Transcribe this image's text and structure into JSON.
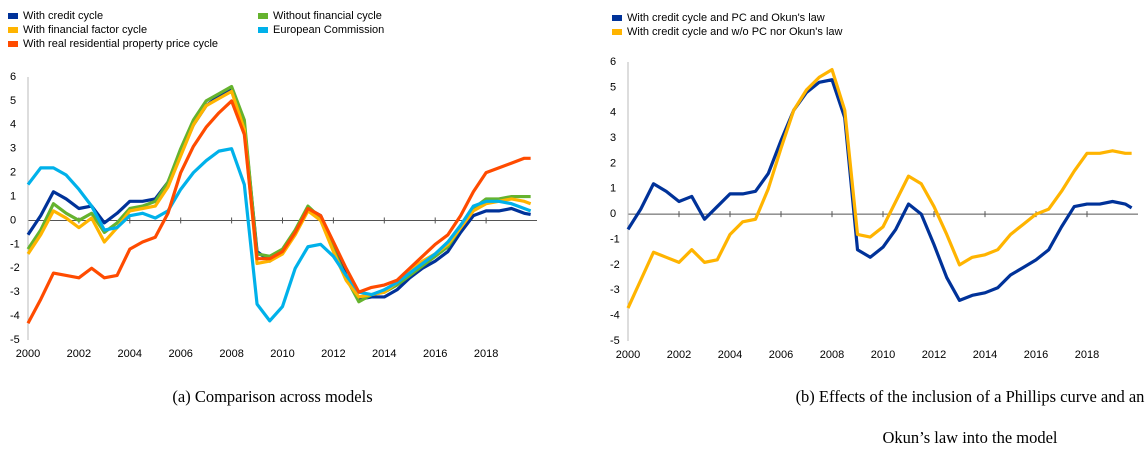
{
  "chart_data": [
    {
      "type": "line",
      "caption": "(a) Comparison across models",
      "x": [
        2000,
        2000.5,
        2001,
        2001.5,
        2002,
        2002.5,
        2003,
        2003.5,
        2004,
        2004.5,
        2005,
        2005.5,
        2006,
        2006.5,
        2007,
        2007.5,
        2008,
        2008.5,
        2009,
        2009.5,
        2010,
        2010.5,
        2011,
        2011.5,
        2012,
        2012.5,
        2013,
        2013.5,
        2014,
        2014.5,
        2015,
        2015.5,
        2016,
        2016.5,
        2017,
        2017.5,
        2018,
        2018.5,
        2019,
        2019.5,
        2019.75
      ],
      "xlim": [
        2000,
        2020
      ],
      "xticks": [
        2000,
        2002,
        2004,
        2006,
        2008,
        2010,
        2012,
        2014,
        2016,
        2018
      ],
      "ylim": [
        -5,
        6
      ],
      "yticks": [
        -5,
        -4,
        -3,
        -2,
        -1,
        0,
        1,
        2,
        3,
        4,
        5,
        6
      ],
      "grid": false,
      "legend_columns": 2,
      "series": [
        {
          "name": "With credit cycle",
          "color": "#003299",
          "values": [
            -0.6,
            0.2,
            1.2,
            0.9,
            0.5,
            0.6,
            -0.1,
            0.3,
            0.8,
            0.8,
            0.9,
            1.6,
            2.8,
            4.0,
            4.8,
            5.2,
            5.5,
            4.0,
            -1.3,
            -1.7,
            -1.3,
            -0.5,
            0.5,
            0.2,
            -1.0,
            -2.3,
            -3.3,
            -3.2,
            -3.2,
            -2.9,
            -2.4,
            -2.0,
            -1.7,
            -1.3,
            -0.5,
            0.2,
            0.4,
            0.4,
            0.5,
            0.3,
            0.25
          ]
        },
        {
          "name": "Without financial cycle",
          "color": "#65b32e",
          "values": [
            -1.2,
            -0.4,
            0.7,
            0.3,
            0.0,
            0.3,
            -0.5,
            -0.1,
            0.5,
            0.6,
            0.8,
            1.6,
            3.0,
            4.2,
            5.0,
            5.3,
            5.6,
            4.2,
            -1.4,
            -1.5,
            -1.2,
            -0.4,
            0.6,
            0.1,
            -1.2,
            -2.4,
            -3.4,
            -3.1,
            -3.0,
            -2.7,
            -2.3,
            -1.9,
            -1.5,
            -1.1,
            -0.3,
            0.5,
            0.9,
            0.9,
            1.0,
            1.0,
            1.0
          ]
        },
        {
          "name": "With financial factor cycle",
          "color": "#ffb400",
          "values": [
            -1.4,
            -0.6,
            0.4,
            0.1,
            -0.3,
            0.1,
            -0.9,
            -0.3,
            0.4,
            0.5,
            0.6,
            1.4,
            2.7,
            4.0,
            4.8,
            5.1,
            5.4,
            3.8,
            -1.8,
            -1.7,
            -1.4,
            -0.6,
            0.4,
            0.0,
            -1.3,
            -2.5,
            -3.2,
            -3.1,
            -3.0,
            -2.6,
            -2.1,
            -1.7,
            -1.4,
            -1.0,
            -0.3,
            0.4,
            0.7,
            0.8,
            0.9,
            0.8,
            0.7
          ]
        },
        {
          "name": "European Commission",
          "color": "#00b1ea",
          "values": [
            1.5,
            2.2,
            2.2,
            1.9,
            1.3,
            0.6,
            -0.4,
            -0.3,
            0.2,
            0.3,
            0.1,
            0.4,
            1.3,
            2.0,
            2.5,
            2.9,
            3.0,
            1.5,
            -3.5,
            -4.2,
            -3.6,
            -2.0,
            -1.1,
            -1.0,
            -1.5,
            -2.3,
            -3.0,
            -3.1,
            -2.9,
            -2.6,
            -2.2,
            -1.8,
            -1.4,
            -0.9,
            -0.2,
            0.6,
            0.8,
            0.8,
            0.7,
            0.5,
            0.4
          ]
        },
        {
          "name": "With real residential property price cycle",
          "color": "#ff4b00",
          "values": [
            -4.3,
            -3.3,
            -2.2,
            -2.3,
            -2.4,
            -2.0,
            -2.4,
            -2.3,
            -1.2,
            -0.9,
            -0.7,
            0.3,
            2.0,
            3.1,
            3.9,
            4.5,
            5.0,
            3.6,
            -1.6,
            -1.6,
            -1.3,
            -0.5,
            0.5,
            0.2,
            -0.9,
            -2.0,
            -3.0,
            -2.8,
            -2.7,
            -2.5,
            -2.0,
            -1.5,
            -1.0,
            -0.6,
            0.2,
            1.2,
            2.0,
            2.2,
            2.4,
            2.6,
            2.6
          ]
        }
      ]
    },
    {
      "type": "line",
      "caption": "(b) Effects of the inclusion of a Phillips curve and an Okun’s law into the model",
      "x": [
        2000,
        2000.5,
        2001,
        2001.5,
        2002,
        2002.5,
        2003,
        2003.5,
        2004,
        2004.5,
        2005,
        2005.5,
        2006,
        2006.5,
        2007,
        2007.5,
        2008,
        2008.5,
        2009,
        2009.5,
        2010,
        2010.5,
        2011,
        2011.5,
        2012,
        2012.5,
        2013,
        2013.5,
        2014,
        2014.5,
        2015,
        2015.5,
        2016,
        2016.5,
        2017,
        2017.5,
        2018,
        2018.5,
        2019,
        2019.5,
        2019.75
      ],
      "xlim": [
        2000,
        2020
      ],
      "xticks": [
        2000,
        2002,
        2004,
        2006,
        2008,
        2010,
        2012,
        2014,
        2016,
        2018
      ],
      "ylim": [
        -5,
        6
      ],
      "yticks": [
        -5,
        -4,
        -3,
        -2,
        -1,
        0,
        1,
        2,
        3,
        4,
        5,
        6
      ],
      "grid": false,
      "legend_columns": 1,
      "series": [
        {
          "name": "With credit cycle and PC and Okun's law",
          "color": "#003299",
          "values": [
            -0.6,
            0.2,
            1.2,
            0.9,
            0.5,
            0.7,
            -0.2,
            0.3,
            0.8,
            0.8,
            0.9,
            1.6,
            2.9,
            4.1,
            4.8,
            5.2,
            5.3,
            3.8,
            -1.4,
            -1.7,
            -1.3,
            -0.6,
            0.4,
            0.0,
            -1.2,
            -2.5,
            -3.4,
            -3.2,
            -3.1,
            -2.9,
            -2.4,
            -2.1,
            -1.8,
            -1.4,
            -0.5,
            0.3,
            0.4,
            0.4,
            0.5,
            0.4,
            0.25
          ]
        },
        {
          "name": "With credit cycle and w/o PC nor Okun's law",
          "color": "#ffb400",
          "values": [
            -3.7,
            -2.6,
            -1.5,
            -1.7,
            -1.9,
            -1.4,
            -1.9,
            -1.8,
            -0.8,
            -0.3,
            -0.2,
            1.0,
            2.6,
            4.1,
            4.9,
            5.4,
            5.7,
            4.1,
            -0.8,
            -0.9,
            -0.5,
            0.5,
            1.5,
            1.2,
            0.3,
            -0.8,
            -2.0,
            -1.7,
            -1.6,
            -1.4,
            -0.8,
            -0.4,
            0.0,
            0.2,
            0.9,
            1.7,
            2.4,
            2.4,
            2.5,
            2.4,
            2.4
          ]
        }
      ]
    }
  ]
}
